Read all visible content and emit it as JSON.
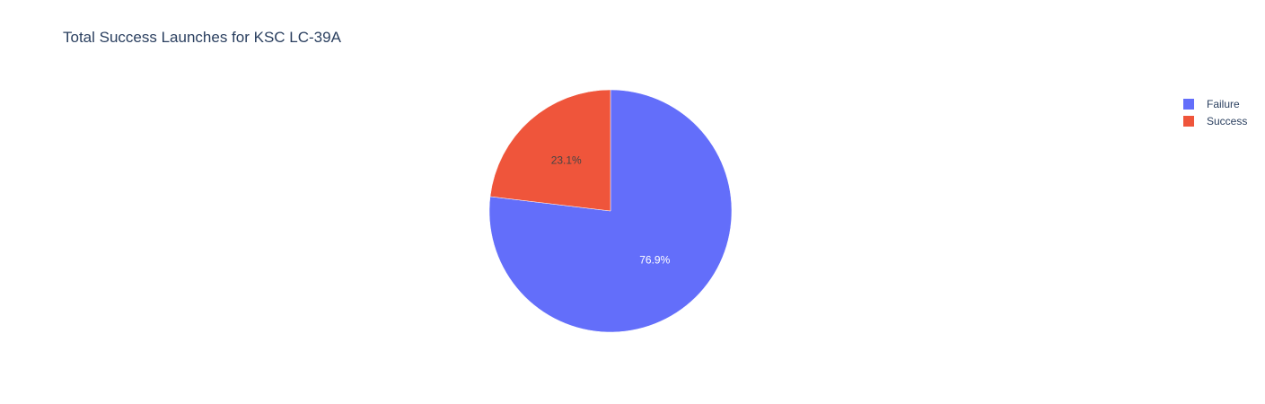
{
  "chart_data": {
    "type": "pie",
    "title": "Total Success Launches for KSC LC-39A",
    "labels": [
      "Failure",
      "Success"
    ],
    "values": [
      76.9,
      23.1
    ],
    "value_labels": [
      "76.9%",
      "23.1%"
    ],
    "colors": [
      "#636efa",
      "#ef553b"
    ],
    "label_colors": [
      "#ffffff",
      "#444444"
    ],
    "legend_placement": "top-right",
    "start_angle_degrees": 90,
    "direction": "clockwise"
  }
}
